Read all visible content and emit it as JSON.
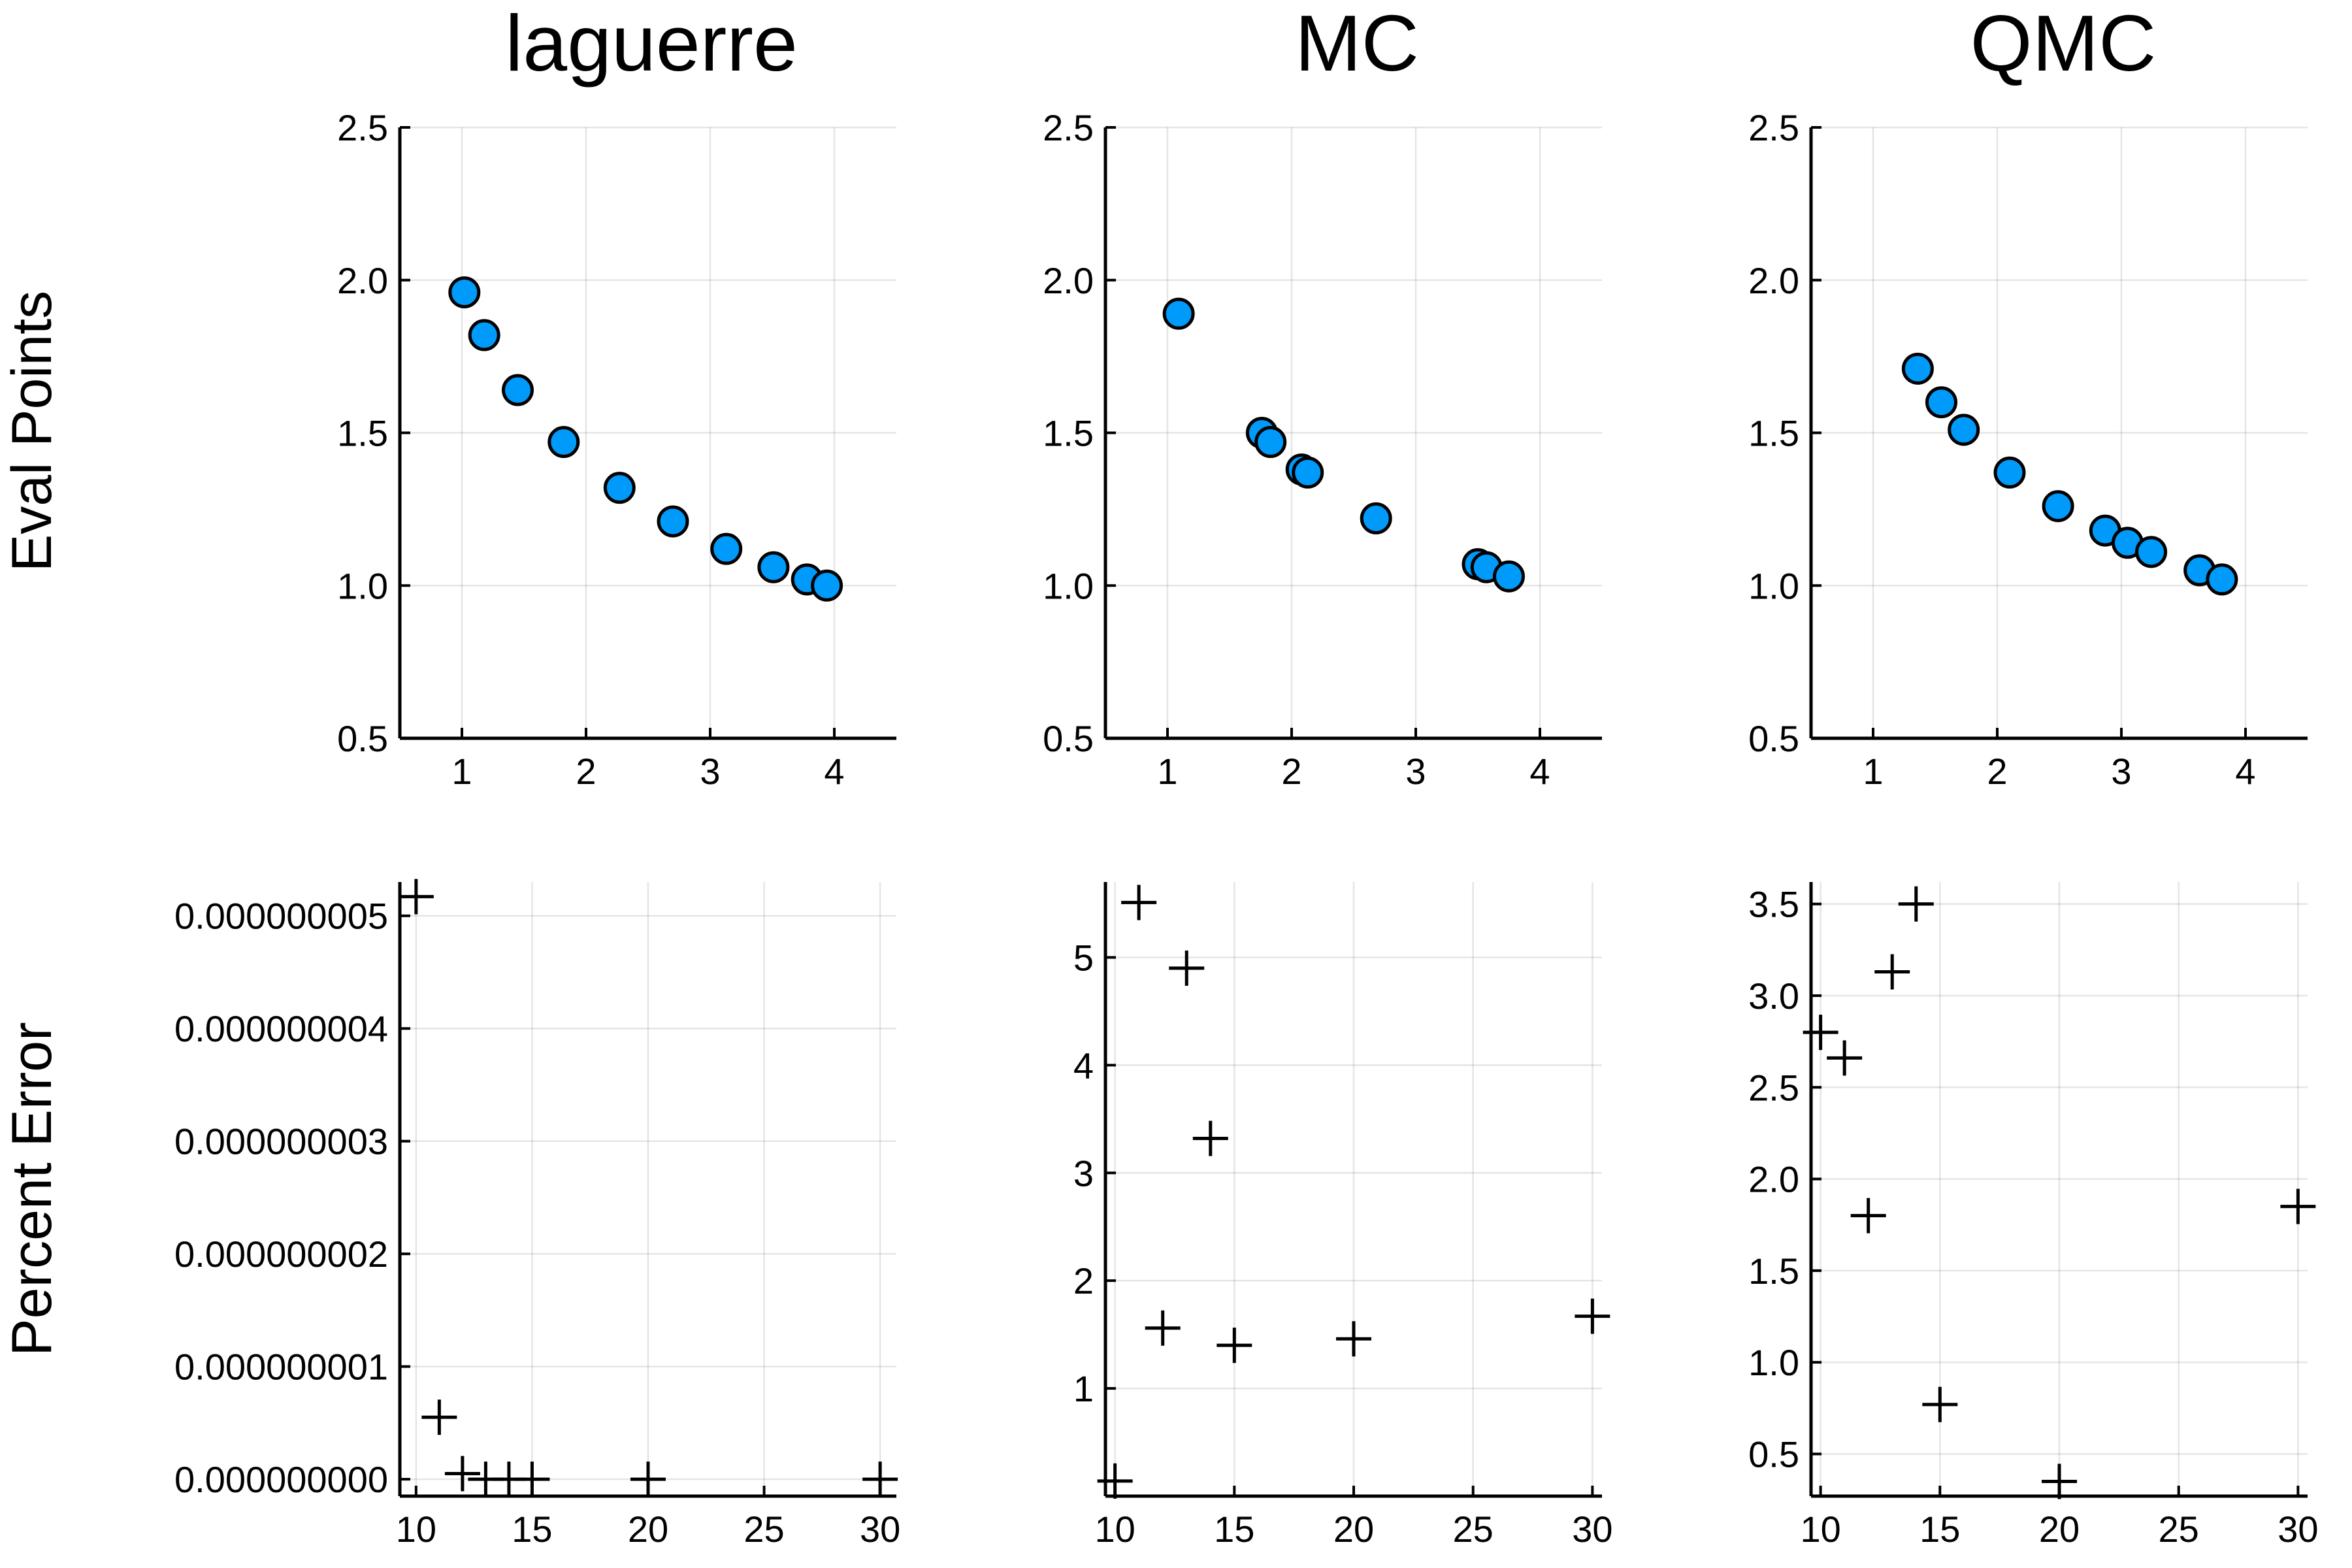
{
  "figure": {
    "row_labels": [
      "Eval Points",
      "Percent Error"
    ],
    "column_titles": [
      "laguerre",
      "MC",
      "QMC"
    ]
  },
  "chart_data": [
    {
      "type": "scatter",
      "row": 0,
      "col": 0,
      "title": "laguerre",
      "ylabel": "Eval Points",
      "marker": "circle",
      "color": "#009AFA",
      "xlim": [
        0.5,
        4.5
      ],
      "ylim": [
        0.5,
        2.5
      ],
      "grid": true,
      "xticks": [
        1,
        2,
        3,
        4
      ],
      "xtick_labels": [
        "1",
        "2",
        "3",
        "4"
      ],
      "yticks": [
        0.5,
        1.0,
        1.5,
        2.0,
        2.5
      ],
      "ytick_labels": [
        "0.5",
        "1.0",
        "1.5",
        "2.0",
        "2.5"
      ],
      "points": [
        [
          1.02,
          1.96
        ],
        [
          1.18,
          1.82
        ],
        [
          1.45,
          1.64
        ],
        [
          1.82,
          1.47
        ],
        [
          2.27,
          1.32
        ],
        [
          2.7,
          1.21
        ],
        [
          3.13,
          1.12
        ],
        [
          3.51,
          1.06
        ],
        [
          3.78,
          1.02
        ],
        [
          3.94,
          1.0
        ]
      ]
    },
    {
      "type": "scatter",
      "row": 0,
      "col": 1,
      "title": "MC",
      "marker": "circle",
      "color": "#009AFA",
      "xlim": [
        0.5,
        4.5
      ],
      "ylim": [
        0.5,
        2.5
      ],
      "grid": true,
      "xticks": [
        1,
        2,
        3,
        4
      ],
      "xtick_labels": [
        "1",
        "2",
        "3",
        "4"
      ],
      "yticks": [
        0.5,
        1.0,
        1.5,
        2.0,
        2.5
      ],
      "ytick_labels": [
        "0.5",
        "1.0",
        "1.5",
        "2.0",
        "2.5"
      ],
      "points": [
        [
          1.09,
          1.89
        ],
        [
          1.76,
          1.5
        ],
        [
          1.83,
          1.47
        ],
        [
          2.08,
          1.38
        ],
        [
          2.13,
          1.37
        ],
        [
          2.68,
          1.22
        ],
        [
          3.5,
          1.07
        ],
        [
          3.57,
          1.06
        ],
        [
          3.75,
          1.03
        ]
      ]
    },
    {
      "type": "scatter",
      "row": 0,
      "col": 2,
      "title": "QMC",
      "marker": "circle",
      "color": "#009AFA",
      "xlim": [
        0.5,
        4.5
      ],
      "ylim": [
        0.5,
        2.5
      ],
      "grid": true,
      "xticks": [
        1,
        2,
        3,
        4
      ],
      "xtick_labels": [
        "1",
        "2",
        "3",
        "4"
      ],
      "yticks": [
        0.5,
        1.0,
        1.5,
        2.0,
        2.5
      ],
      "ytick_labels": [
        "0.5",
        "1.0",
        "1.5",
        "2.0",
        "2.5"
      ],
      "points": [
        [
          1.36,
          1.71
        ],
        [
          1.55,
          1.6
        ],
        [
          1.73,
          1.51
        ],
        [
          2.1,
          1.37
        ],
        [
          2.49,
          1.26
        ],
        [
          2.87,
          1.18
        ],
        [
          3.05,
          1.14
        ],
        [
          3.24,
          1.11
        ],
        [
          3.63,
          1.05
        ],
        [
          3.81,
          1.02
        ]
      ]
    },
    {
      "type": "scatter",
      "row": 1,
      "col": 0,
      "ylabel": "Percent Error",
      "marker": "cross",
      "xlim": [
        9.3,
        30.7
      ],
      "ylim": [
        -1.5e-10,
        5.3e-09
      ],
      "grid": true,
      "xticks": [
        10,
        15,
        20,
        25,
        30
      ],
      "xtick_labels": [
        "10",
        "15",
        "20",
        "25",
        "30"
      ],
      "yticks": [
        0,
        1e-09,
        2e-09,
        3e-09,
        4e-09,
        5e-09
      ],
      "ytick_labels": [
        "0.000000000",
        "0.000000001",
        "0.000000002",
        "0.000000003",
        "0.000000004",
        "0.000000005"
      ],
      "points": [
        [
          10,
          5.17e-09
        ],
        [
          11,
          5.5e-10
        ],
        [
          12,
          5e-11
        ],
        [
          13,
          0.0
        ],
        [
          14,
          0.0
        ],
        [
          15,
          0.0
        ],
        [
          20,
          0.0
        ],
        [
          30,
          0.0
        ]
      ]
    },
    {
      "type": "scatter",
      "row": 1,
      "col": 1,
      "marker": "cross",
      "xlim": [
        9.6,
        30.4
      ],
      "ylim": [
        0.0,
        5.7
      ],
      "grid": true,
      "xticks": [
        10,
        15,
        20,
        25,
        30
      ],
      "xtick_labels": [
        "10",
        "15",
        "20",
        "25",
        "30"
      ],
      "yticks": [
        1,
        2,
        3,
        4,
        5
      ],
      "ytick_labels": [
        "1",
        "2",
        "3",
        "4",
        "5"
      ],
      "points": [
        [
          10,
          0.14
        ],
        [
          11,
          5.51
        ],
        [
          12,
          1.56
        ],
        [
          13,
          4.9
        ],
        [
          14,
          3.32
        ],
        [
          15,
          1.4
        ],
        [
          20,
          1.46
        ],
        [
          30,
          1.67
        ]
      ]
    },
    {
      "type": "scatter",
      "row": 1,
      "col": 2,
      "marker": "cross",
      "xlim": [
        9.6,
        30.4
      ],
      "ylim": [
        0.27,
        3.62
      ],
      "grid": true,
      "xticks": [
        10,
        15,
        20,
        25,
        30
      ],
      "xtick_labels": [
        "10",
        "15",
        "20",
        "25",
        "30"
      ],
      "yticks": [
        0.5,
        1.0,
        1.5,
        2.0,
        2.5,
        3.0,
        3.5
      ],
      "ytick_labels": [
        "0.5",
        "1.0",
        "1.5",
        "2.0",
        "2.5",
        "3.0",
        "3.5"
      ],
      "points": [
        [
          10,
          2.8
        ],
        [
          11,
          2.66
        ],
        [
          12,
          1.8
        ],
        [
          13,
          3.13
        ],
        [
          14,
          3.5
        ],
        [
          15,
          0.77
        ],
        [
          20,
          0.35
        ],
        [
          30,
          1.85
        ]
      ]
    }
  ]
}
